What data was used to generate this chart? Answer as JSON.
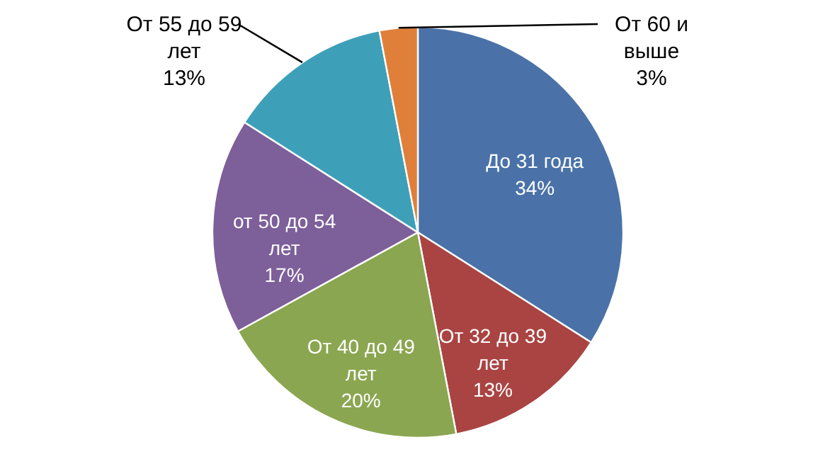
{
  "chart_data": {
    "type": "pie",
    "categories": [
      "До 31 года",
      "От 32 до 39 лет",
      "От 40 до 49 лет",
      "от 50 до 54 лет",
      "От 55 до 59 лет",
      "От 60 и выше"
    ],
    "values": [
      34,
      13,
      20,
      17,
      13,
      3
    ],
    "value_labels": [
      "34%",
      "13%",
      "20%",
      "17%",
      "13%",
      "3%"
    ],
    "colors": [
      "#4a72a8",
      "#a94442",
      "#8aa650",
      "#7d5f9a",
      "#3ea0b8",
      "#e07f3a"
    ]
  }
}
